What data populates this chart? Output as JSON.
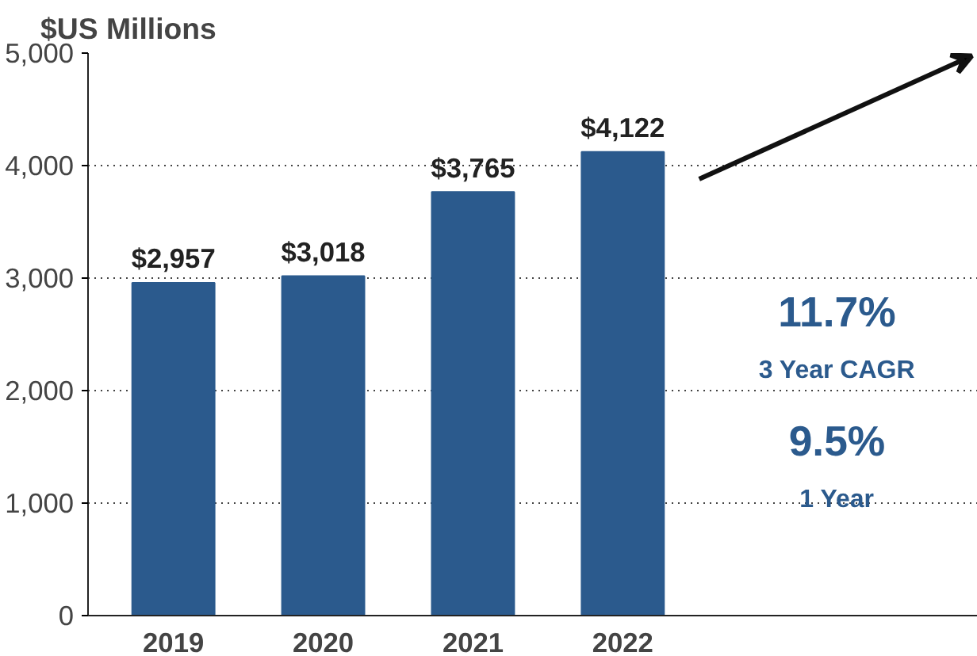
{
  "chart_data": {
    "type": "bar",
    "ylabel": "$US Millions",
    "categories": [
      "2019",
      "2020",
      "2021",
      "2022"
    ],
    "values": [
      2957,
      3018,
      3765,
      4122
    ],
    "color": "#2b5a8d",
    "value_labels": [
      "$2,957",
      "$3,018",
      "$3,765",
      "$4,122"
    ],
    "ylim": [
      0,
      5000
    ],
    "yticks": [
      {
        "value": 0,
        "label": "0"
      },
      {
        "value": 1000,
        "label": "1,000"
      },
      {
        "value": 2000,
        "label": "2,000"
      },
      {
        "value": 3000,
        "label": "3,000"
      },
      {
        "value": 4000,
        "label": "4,000"
      },
      {
        "value": 5000,
        "label": "5,000"
      }
    ],
    "grid": "y",
    "annotations": [
      "11.7%",
      "3 Year CAGR",
      "9.5%",
      "1 Year"
    ]
  }
}
